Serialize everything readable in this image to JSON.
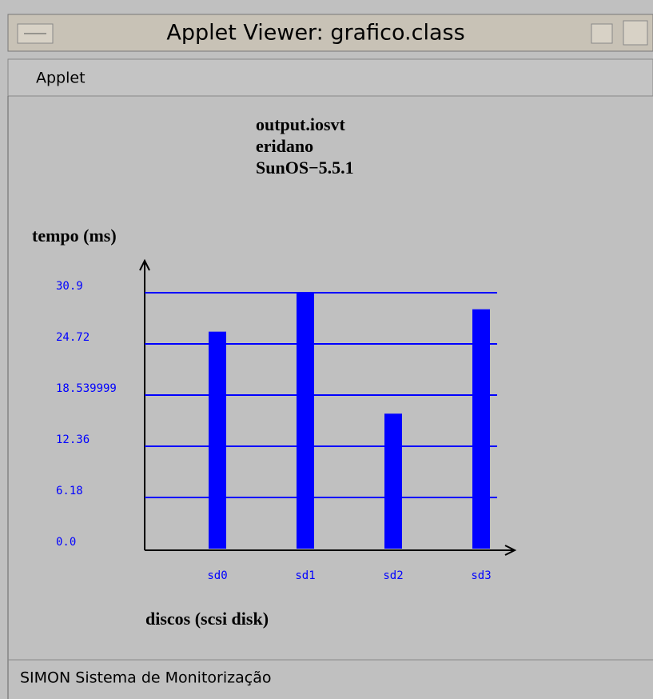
{
  "window": {
    "title": "Applet Viewer: grafico.class",
    "menu": [
      "Applet"
    ],
    "status": "SIMON  Sistema de Monitorização"
  },
  "chart_data": {
    "type": "bar",
    "header": [
      "output.iosvt",
      "eridano",
      "SunOS−5.5.1"
    ],
    "y_label": "tempo (ms)",
    "x_label": "discos (scsi disk)",
    "categories": [
      "sd0",
      "sd1",
      "sd2",
      "sd3"
    ],
    "values": [
      26.2,
      30.9,
      16.3,
      28.9
    ],
    "color": "#0000ff",
    "ylim": [
      0,
      30.9
    ],
    "yticks": [
      {
        "value": 0,
        "label": "0.0"
      },
      6.18,
      12.36,
      18.539999,
      24.72,
      30.9
    ],
    "grid": true
  }
}
